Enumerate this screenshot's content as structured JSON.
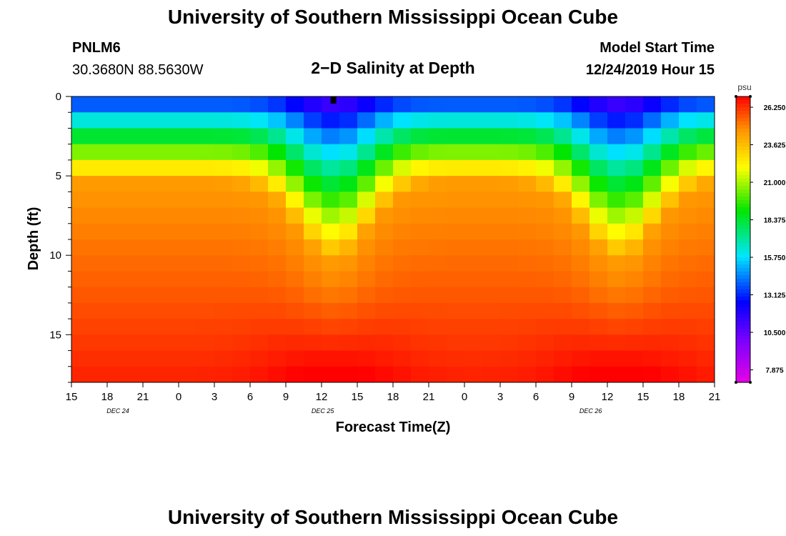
{
  "header": {
    "title": "University of Southern Mississippi Ocean Cube",
    "station_id": "PNLM6",
    "coords": "30.3680N 88.5630W",
    "subtitle": "2−D Salinity at Depth",
    "model_start_label": "Model Start Time",
    "model_start_value": "12/24/2019 Hour 15"
  },
  "footer": {
    "title": "University of Southern Mississippi Ocean Cube"
  },
  "chart_data": {
    "type": "heatmap",
    "title": "2−D Salinity at Depth",
    "xlabel": "Forecast Time(Z)",
    "ylabel": "Depth (ft)",
    "x_start_hour": 15,
    "x_end_hour": 69,
    "x_step_hours": 3,
    "x_tick_labels": [
      "15",
      "18",
      "21",
      "0",
      "3",
      "6",
      "9",
      "12",
      "15",
      "18",
      "21",
      "0",
      "3",
      "6",
      "9",
      "12",
      "15",
      "18",
      "21"
    ],
    "day_labels": [
      {
        "text": "DEC  24",
        "hour": 18.9
      },
      {
        "text": "DEC  25",
        "hour": 36.1
      },
      {
        "text": "DEC  26",
        "hour": 58.6
      }
    ],
    "ylim": [
      0,
      18
    ],
    "y_ticks": [
      0,
      5,
      10,
      15
    ],
    "y_minor_step": 1,
    "current_time_hour": 37,
    "colorbar": {
      "unit": "psu",
      "min": 7.0,
      "max": 27.0,
      "tick_values": [
        7.875,
        10.5,
        13.125,
        15.75,
        18.375,
        21.0,
        23.625,
        26.25
      ],
      "tick_labels": [
        "7.875",
        "10.500",
        "13.125",
        "15.750",
        "18.375",
        "21.000",
        "23.625",
        "26.250"
      ]
    },
    "model": {
      "description": "Approximate salinity (psu) field read from the heatmap: fresh surface layer deepening at ~hour 37 and ~hour 61, saltier near bottom",
      "mixed_layer_depth_peaks": [
        {
          "hour": 37,
          "depth_ft": 10.5,
          "width_hours": 8
        },
        {
          "hour": 61,
          "depth_ft": 10.5,
          "width_hours": 8
        }
      ],
      "base_mixed_layer_depth_ft": 5.5,
      "surface_salinity_psu": 12.5,
      "surface_min_salinity_psu": 8.5,
      "bottom_salinity_psu": 26.5
    }
  }
}
